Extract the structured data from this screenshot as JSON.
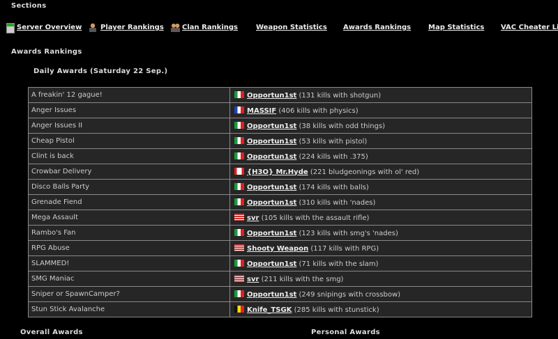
{
  "sections_title": "Sections",
  "nav": [
    {
      "label": "Server Overview",
      "icon": "server-icon"
    },
    {
      "label": "Player Rankings",
      "icon": "player-icon"
    },
    {
      "label": "Clan Rankings",
      "icon": "clan-icon"
    },
    {
      "label": "Weapon Statistics"
    },
    {
      "label": "Awards Rankings"
    },
    {
      "label": "Map Statistics"
    },
    {
      "label": "VAC Cheater List"
    }
  ],
  "page_title": "Awards Rankings",
  "daily_title": "Daily Awards (Saturday 22 Sep.)",
  "awards": [
    {
      "award": "A freakin' 12 gague!",
      "flag": "it",
      "player": "Opportun1st",
      "detail": "(131 kills with shotgun)"
    },
    {
      "award": "Anger Issues",
      "flag": "fr",
      "player": "MASSIF",
      "detail": "(406 kills with physics)"
    },
    {
      "award": "Anger Issues II",
      "flag": "it",
      "player": "Opportun1st",
      "detail": "(38 kills with odd things)"
    },
    {
      "award": "Cheap Pistol",
      "flag": "it",
      "player": "Opportun1st",
      "detail": "(53 kills with pistol)"
    },
    {
      "award": "Clint is back",
      "flag": "it",
      "player": "Opportun1st",
      "detail": "(224 kills with .375)"
    },
    {
      "award": "Crowbar Delivery",
      "flag": "ca",
      "player": "{H3O} Mr.Hyde",
      "detail": "(221 bludgeonings with ol' red)"
    },
    {
      "award": "Disco Balls Party",
      "flag": "it",
      "player": "Opportun1st",
      "detail": "(174 kills with balls)"
    },
    {
      "award": "Grenade Fiend",
      "flag": "it",
      "player": "Opportun1st",
      "detail": "(310 kills with 'nades)"
    },
    {
      "award": "Mega Assault",
      "flag": "us",
      "player": "svr",
      "detail": "(105 kills with the assault rifle)"
    },
    {
      "award": "Rambo's Fan",
      "flag": "it",
      "player": "Opportun1st",
      "detail": "(123 kills with smg's 'nades)"
    },
    {
      "award": "RPG Abuse",
      "flag": "us",
      "player": "Shooty Weapon",
      "detail": "(117 kills with RPG)"
    },
    {
      "award": "SLAMMED!",
      "flag": "it",
      "player": "Opportun1st",
      "detail": "(71 kills with the slam)"
    },
    {
      "award": "SMG Maniac",
      "flag": "us",
      "player": "svr",
      "detail": "(211 kills with the smg)"
    },
    {
      "award": "Sniper or SpawnCamper?",
      "flag": "it",
      "player": "Opportun1st",
      "detail": "(249 snipings with crossbow)"
    },
    {
      "award": "Stun Stick Avalanche",
      "flag": "be",
      "player": "Knife_TSGK",
      "detail": "(285 kills with stunstick)"
    }
  ],
  "overall_title": "Overall Awards",
  "personal_title": "Personal Awards"
}
